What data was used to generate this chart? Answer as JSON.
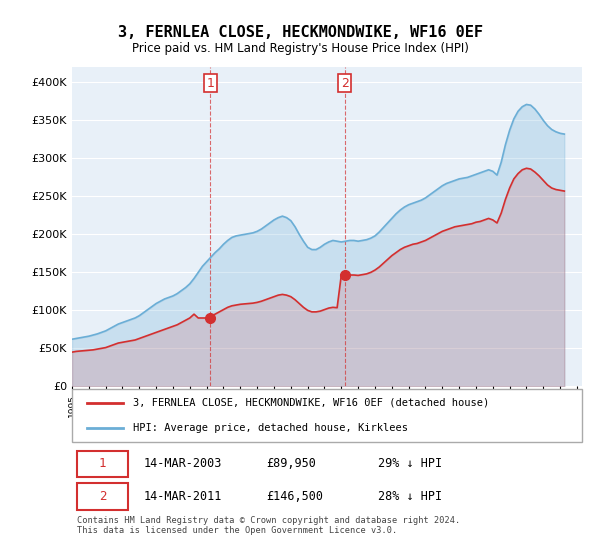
{
  "title": "3, FERNLEA CLOSE, HECKMONDWIKE, WF16 0EF",
  "subtitle": "Price paid vs. HM Land Registry's House Price Index (HPI)",
  "ylabel": "",
  "ylim": [
    0,
    420000
  ],
  "yticks": [
    0,
    50000,
    100000,
    150000,
    200000,
    250000,
    300000,
    350000,
    400000
  ],
  "ytick_labels": [
    "£0",
    "£50K",
    "£100K",
    "£150K",
    "£200K",
    "£250K",
    "£300K",
    "£350K",
    "£400K"
  ],
  "bg_color": "#e8f0f8",
  "plot_bg_color": "#e8f0f8",
  "grid_color": "#ffffff",
  "hpi_color": "#6baed6",
  "price_color": "#d32f2f",
  "sale1_date": "2003-03-14",
  "sale1_price": 89950,
  "sale1_label": "1",
  "sale2_date": "2011-03-14",
  "sale2_price": 146500,
  "sale2_label": "2",
  "legend_label1": "3, FERNLEA CLOSE, HECKMONDWIKE, WF16 0EF (detached house)",
  "legend_label2": "HPI: Average price, detached house, Kirklees",
  "table_row1": [
    "1",
    "14-MAR-2003",
    "£89,950",
    "29% ↓ HPI"
  ],
  "table_row2": [
    "2",
    "14-MAR-2011",
    "£146,500",
    "28% ↓ HPI"
  ],
  "footer": "Contains HM Land Registry data © Crown copyright and database right 2024.\nThis data is licensed under the Open Government Licence v3.0.",
  "hpi_data_x": [
    1995.0,
    1995.25,
    1995.5,
    1995.75,
    1996.0,
    1996.25,
    1996.5,
    1996.75,
    1997.0,
    1997.25,
    1997.5,
    1997.75,
    1998.0,
    1998.25,
    1998.5,
    1998.75,
    1999.0,
    1999.25,
    1999.5,
    1999.75,
    2000.0,
    2000.25,
    2000.5,
    2000.75,
    2001.0,
    2001.25,
    2001.5,
    2001.75,
    2002.0,
    2002.25,
    2002.5,
    2002.75,
    2003.0,
    2003.25,
    2003.5,
    2003.75,
    2004.0,
    2004.25,
    2004.5,
    2004.75,
    2005.0,
    2005.25,
    2005.5,
    2005.75,
    2006.0,
    2006.25,
    2006.5,
    2006.75,
    2007.0,
    2007.25,
    2007.5,
    2007.75,
    2008.0,
    2008.25,
    2008.5,
    2008.75,
    2009.0,
    2009.25,
    2009.5,
    2009.75,
    2010.0,
    2010.25,
    2010.5,
    2010.75,
    2011.0,
    2011.25,
    2011.5,
    2011.75,
    2012.0,
    2012.25,
    2012.5,
    2012.75,
    2013.0,
    2013.25,
    2013.5,
    2013.75,
    2014.0,
    2014.25,
    2014.5,
    2014.75,
    2015.0,
    2015.25,
    2015.5,
    2015.75,
    2016.0,
    2016.25,
    2016.5,
    2016.75,
    2017.0,
    2017.25,
    2017.5,
    2017.75,
    2018.0,
    2018.25,
    2018.5,
    2018.75,
    2019.0,
    2019.25,
    2019.5,
    2019.75,
    2020.0,
    2020.25,
    2020.5,
    2020.75,
    2021.0,
    2021.25,
    2021.5,
    2021.75,
    2022.0,
    2022.25,
    2022.5,
    2022.75,
    2023.0,
    2023.25,
    2023.5,
    2023.75,
    2024.0,
    2024.25
  ],
  "hpi_data_y": [
    62000,
    63000,
    64000,
    65000,
    66000,
    67500,
    69000,
    71000,
    73000,
    76000,
    79000,
    82000,
    84000,
    86000,
    88000,
    90000,
    93000,
    97000,
    101000,
    105000,
    109000,
    112000,
    115000,
    117000,
    119000,
    122000,
    126000,
    130000,
    135000,
    142000,
    150000,
    158000,
    164000,
    170000,
    176000,
    181000,
    187000,
    192000,
    196000,
    198000,
    199000,
    200000,
    201000,
    202000,
    204000,
    207000,
    211000,
    215000,
    219000,
    222000,
    224000,
    222000,
    218000,
    210000,
    200000,
    191000,
    183000,
    180000,
    180000,
    183000,
    187000,
    190000,
    192000,
    191000,
    190000,
    191000,
    192000,
    192000,
    191000,
    192000,
    193000,
    195000,
    198000,
    203000,
    209000,
    215000,
    221000,
    227000,
    232000,
    236000,
    239000,
    241000,
    243000,
    245000,
    248000,
    252000,
    256000,
    260000,
    264000,
    267000,
    269000,
    271000,
    273000,
    274000,
    275000,
    277000,
    279000,
    281000,
    283000,
    285000,
    283000,
    278000,
    295000,
    318000,
    337000,
    352000,
    362000,
    368000,
    371000,
    370000,
    365000,
    358000,
    350000,
    343000,
    338000,
    335000,
    333000,
    332000
  ],
  "price_data_x": [
    1995.0,
    1995.25,
    1995.5,
    1995.75,
    1996.0,
    1996.25,
    1996.5,
    1996.75,
    1997.0,
    1997.25,
    1997.5,
    1997.75,
    1998.0,
    1998.25,
    1998.5,
    1998.75,
    1999.0,
    1999.25,
    1999.5,
    1999.75,
    2000.0,
    2000.25,
    2000.5,
    2000.75,
    2001.0,
    2001.25,
    2001.5,
    2001.75,
    2002.0,
    2002.25,
    2002.5,
    2002.75,
    2003.0,
    2003.25,
    2003.5,
    2003.75,
    2004.0,
    2004.25,
    2004.5,
    2004.75,
    2005.0,
    2005.25,
    2005.5,
    2005.75,
    2006.0,
    2006.25,
    2006.5,
    2006.75,
    2007.0,
    2007.25,
    2007.5,
    2007.75,
    2008.0,
    2008.25,
    2008.5,
    2008.75,
    2009.0,
    2009.25,
    2009.5,
    2009.75,
    2010.0,
    2010.25,
    2010.5,
    2010.75,
    2011.0,
    2011.25,
    2011.5,
    2011.75,
    2012.0,
    2012.25,
    2012.5,
    2012.75,
    2013.0,
    2013.25,
    2013.5,
    2013.75,
    2014.0,
    2014.25,
    2014.5,
    2014.75,
    2015.0,
    2015.25,
    2015.5,
    2015.75,
    2016.0,
    2016.25,
    2016.5,
    2016.75,
    2017.0,
    2017.25,
    2017.5,
    2017.75,
    2018.0,
    2018.25,
    2018.5,
    2018.75,
    2019.0,
    2019.25,
    2019.5,
    2019.75,
    2020.0,
    2020.25,
    2020.5,
    2020.75,
    2021.0,
    2021.25,
    2021.5,
    2021.75,
    2022.0,
    2022.25,
    2022.5,
    2022.75,
    2023.0,
    2023.25,
    2023.5,
    2023.75,
    2024.0,
    2024.25
  ],
  "price_data_y": [
    45000,
    46000,
    46500,
    47000,
    47500,
    48000,
    49000,
    50000,
    51000,
    53000,
    55000,
    57000,
    58000,
    59000,
    60000,
    61000,
    63000,
    65000,
    67000,
    69000,
    71000,
    73000,
    75000,
    77000,
    79000,
    81000,
    84000,
    87000,
    90000,
    95000,
    89950,
    89950,
    89950,
    92000,
    95000,
    98000,
    101000,
    104000,
    106000,
    107000,
    108000,
    108500,
    109000,
    109500,
    110500,
    112000,
    114000,
    116000,
    118000,
    120000,
    121000,
    120000,
    118000,
    114000,
    109000,
    104000,
    100000,
    98000,
    98000,
    99000,
    101000,
    103000,
    104000,
    103500,
    146500,
    146500,
    146500,
    146500,
    146000,
    147000,
    148000,
    150000,
    153000,
    157000,
    162000,
    167000,
    172000,
    176000,
    180000,
    183000,
    185000,
    187000,
    188000,
    190000,
    192000,
    195000,
    198000,
    201000,
    204000,
    206000,
    208000,
    210000,
    211000,
    212000,
    213000,
    214000,
    216000,
    217000,
    219000,
    221000,
    219000,
    215000,
    228000,
    246000,
    261000,
    273000,
    280000,
    285000,
    287000,
    286000,
    282000,
    277000,
    271000,
    265000,
    261000,
    259000,
    258000,
    257000
  ]
}
